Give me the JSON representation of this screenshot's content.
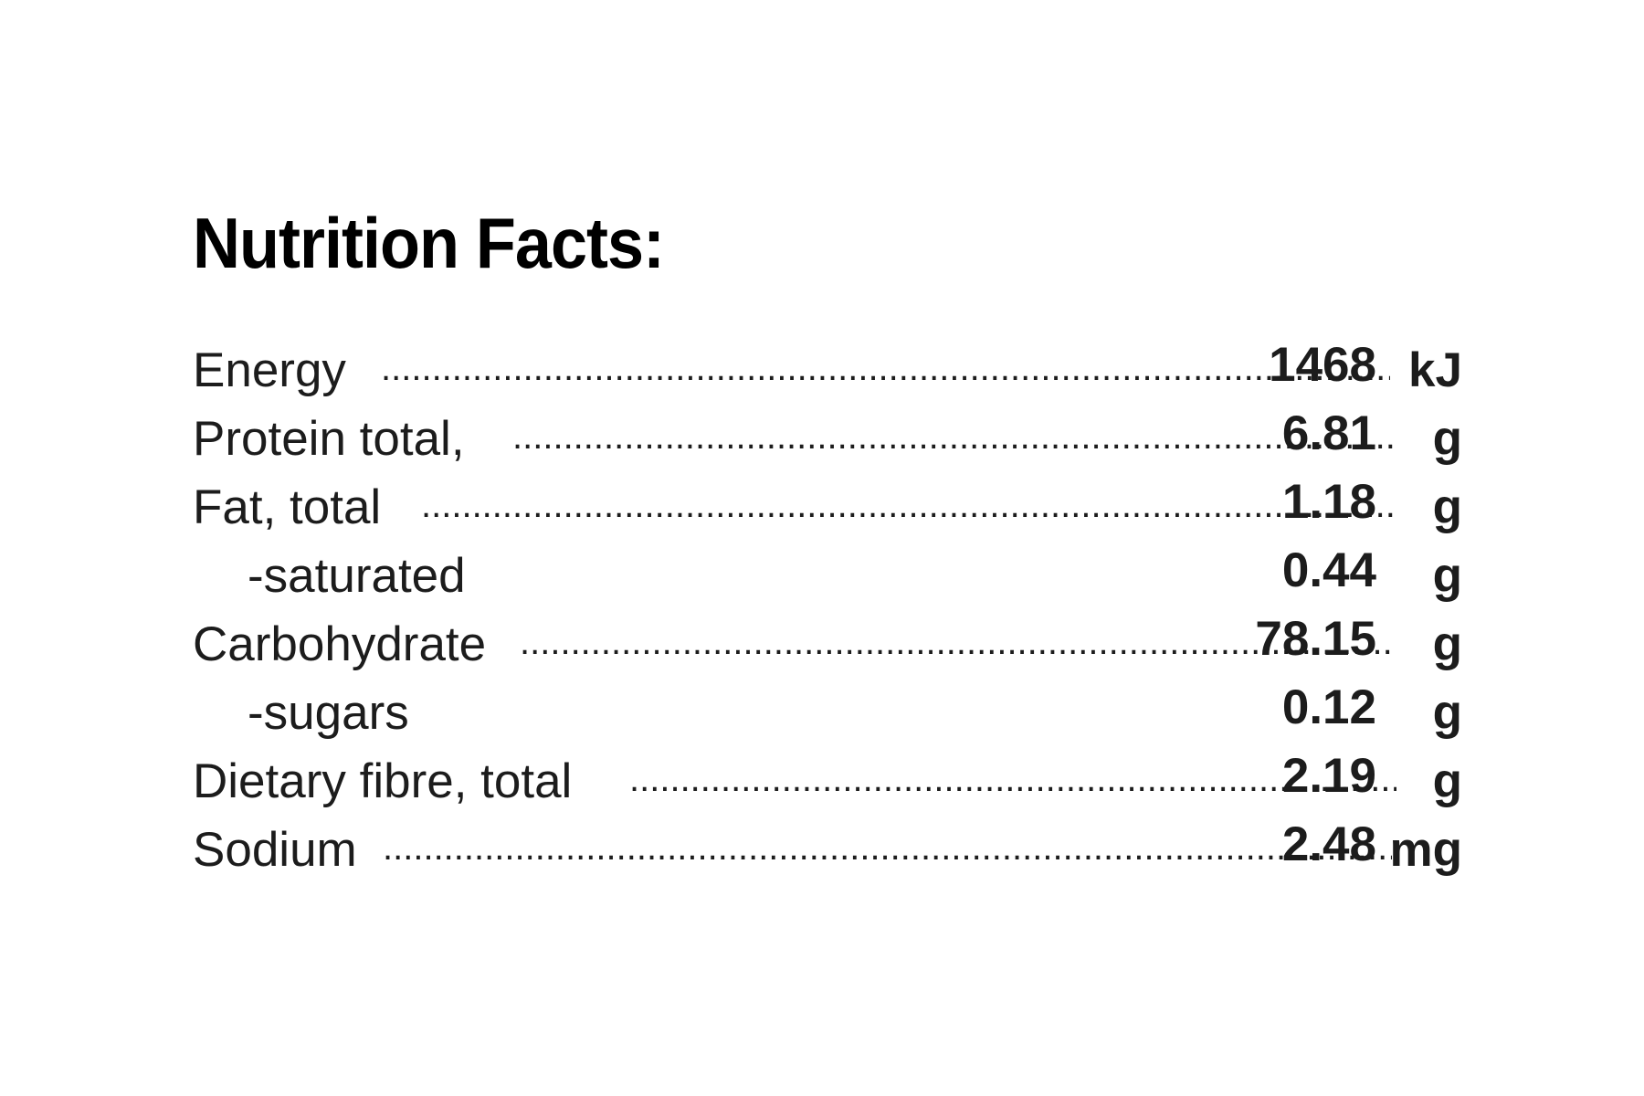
{
  "title": "Nutrition Facts:",
  "rows": [
    {
      "label": "Energy",
      "value": "1468",
      "unit": "kJ",
      "indent": false,
      "dotted": true
    },
    {
      "label": "Protein total,",
      "value": "6.81",
      "unit": "g",
      "indent": false,
      "dotted": true
    },
    {
      "label": "Fat, total",
      "value": "1.18",
      "unit": "g",
      "indent": false,
      "dotted": true
    },
    {
      "label": "-saturated",
      "value": "0.44",
      "unit": "g",
      "indent": true,
      "dotted": false
    },
    {
      "label": "Carbohydrate",
      "value": "78.15",
      "unit": "g",
      "indent": false,
      "dotted": true
    },
    {
      "label": "-sugars",
      "value": "0.12",
      "unit": "g",
      "indent": true,
      "dotted": false
    },
    {
      "label": "Dietary fibre, total",
      "value": "2.19",
      "unit": "g",
      "indent": false,
      "dotted": true
    },
    {
      "label": "Sodium",
      "value": "2.48",
      "unit": "mg",
      "indent": false,
      "dotted": true
    }
  ]
}
